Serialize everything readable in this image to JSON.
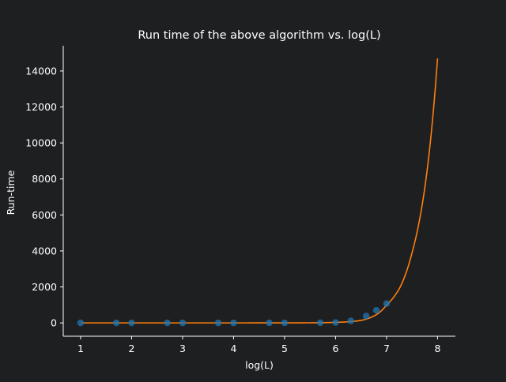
{
  "colors": {
    "background": "#1e1f21",
    "axis": "#ffffff",
    "text": "#ffffff",
    "scatter": "#1f77b4",
    "fit_line": "#ff7f0e"
  },
  "chart_data": {
    "type": "scatter",
    "title": "Run time of the above algorithm vs. log(L)",
    "xlabel": "log(L)",
    "ylabel": "Run-time",
    "xlim": [
      0.66,
      8.35
    ],
    "ylim": [
      -740,
      15400
    ],
    "xticks": [
      1,
      2,
      3,
      4,
      5,
      6,
      7,
      8
    ],
    "yticks": [
      0,
      2000,
      4000,
      6000,
      8000,
      10000,
      12000,
      14000
    ],
    "grid": false,
    "legend": "none",
    "series": [
      {
        "kind": "scatter",
        "color": "#1f77b4",
        "x": [
          1.0,
          1.7,
          2.0,
          2.7,
          3.0,
          3.7,
          4.0,
          4.7,
          5.0,
          5.7,
          6.0,
          6.3,
          6.6,
          6.8,
          7.0
        ],
        "y": [
          0,
          0,
          0,
          0,
          0,
          0,
          0,
          1,
          2,
          8,
          25,
          110,
          380,
          700,
          1070
        ]
      },
      {
        "kind": "line",
        "color": "#ff7f0e",
        "x": [
          1.0,
          2.0,
          3.0,
          4.0,
          5.0,
          5.5,
          6.0,
          6.25,
          6.5,
          6.75,
          7.0,
          7.25,
          7.5,
          7.75,
          8.0
        ],
        "y": [
          0,
          0,
          0,
          0,
          2,
          6,
          30,
          62,
          140,
          380,
          1000,
          1900,
          3900,
          7500,
          14700
        ]
      }
    ]
  }
}
